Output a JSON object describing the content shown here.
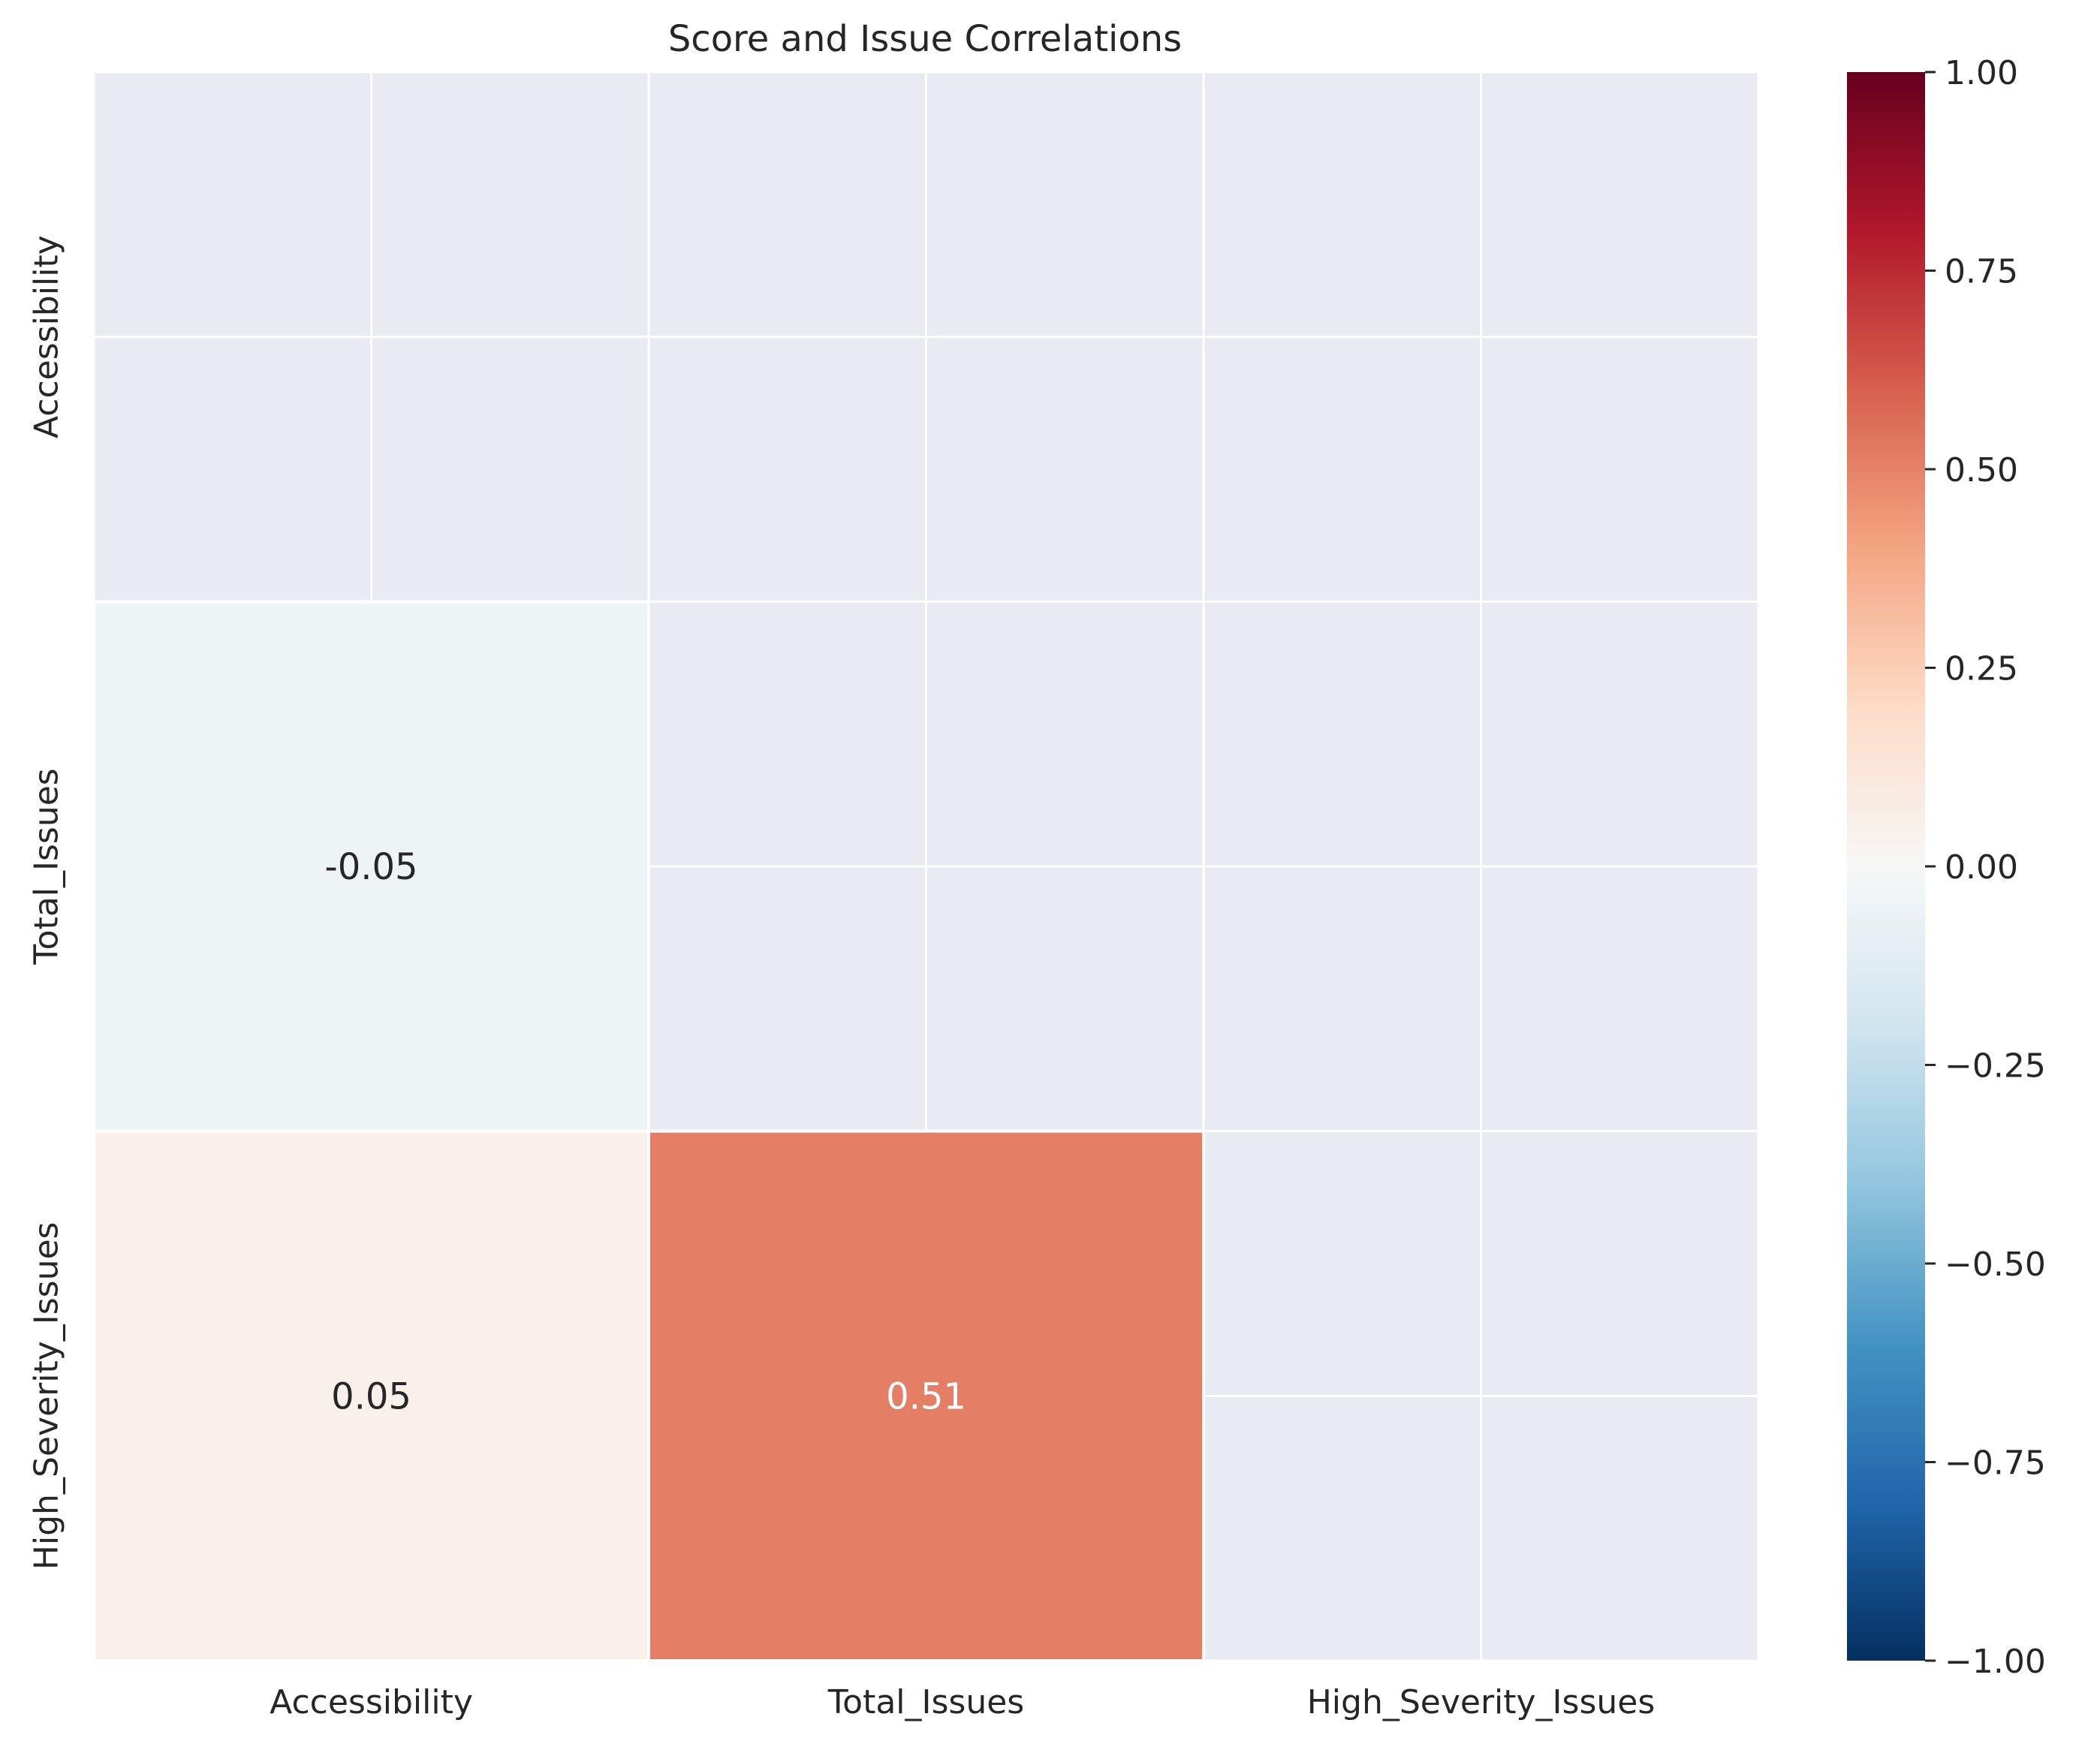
{
  "chart_data": {
    "type": "heatmap",
    "title": "Score and Issue Correlations",
    "rows": [
      "Accessibility",
      "Total_Issues",
      "High_Severity_Issues"
    ],
    "columns": [
      "Accessibility",
      "Total_Issues",
      "High_Severity_Issues"
    ],
    "values": [
      [
        null,
        null,
        null
      ],
      [
        -0.05,
        null,
        null
      ],
      [
        0.05,
        0.51,
        null
      ]
    ],
    "mask": "upper triangle including diagonal",
    "colormap": "RdBu_r",
    "vmin": -1.0,
    "vmax": 1.0,
    "colorbar_ticks": [
      "1.00",
      "0.75",
      "0.50",
      "0.25",
      "0.00",
      "−0.25",
      "−0.50",
      "−0.75",
      "−1.00"
    ],
    "colorbar_tick_values": [
      1.0,
      0.75,
      0.5,
      0.25,
      0.0,
      -0.25,
      -0.5,
      -0.75,
      -1.0
    ],
    "annotations": [
      "-0.05",
      "0.05",
      "0.51"
    ],
    "colors": {
      "masked_background": "#eaeaf2",
      "grid_line": "#ffffff",
      "text_dark": "#262626",
      "text_light": "#ffffff"
    }
  }
}
